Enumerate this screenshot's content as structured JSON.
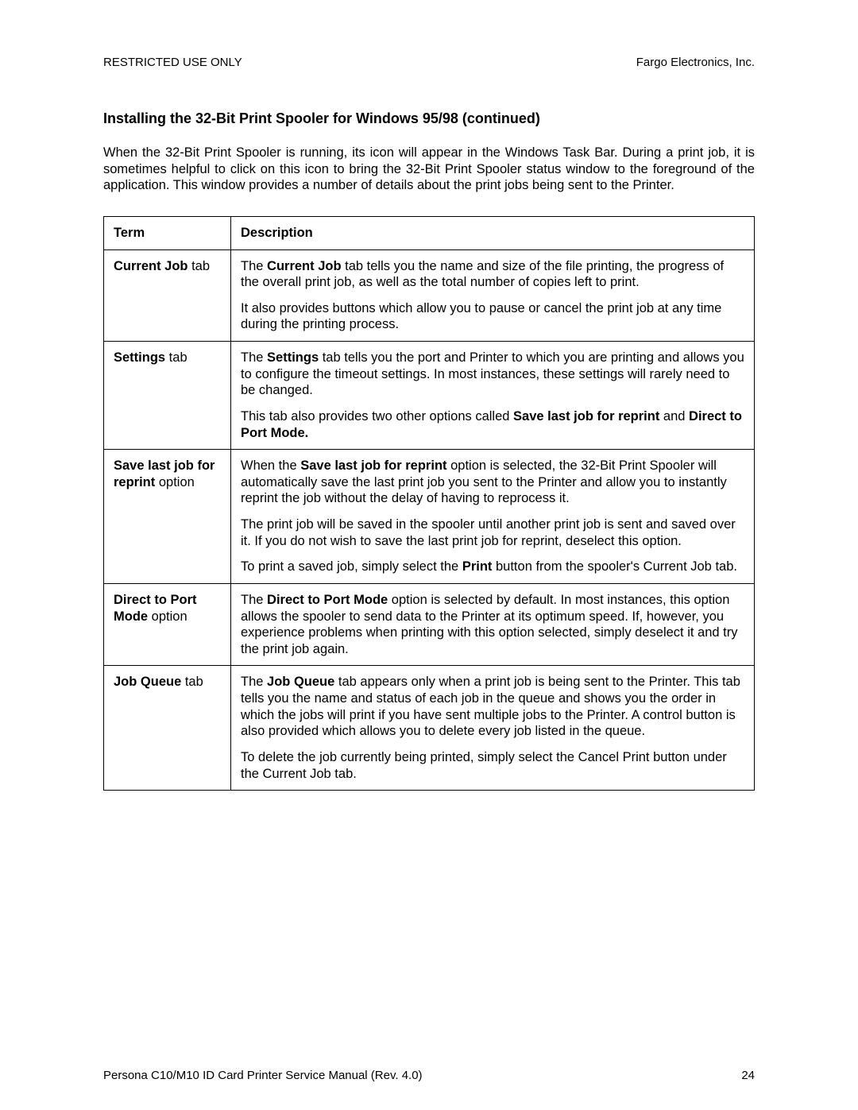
{
  "header": {
    "left": "RESTRICTED USE ONLY",
    "right": "Fargo Electronics, Inc."
  },
  "heading": "Installing the 32-Bit Print Spooler for Windows 95/98 (continued)",
  "intro": "When the 32-Bit Print Spooler is running, its icon will appear in the Windows Task Bar. During a print job, it is sometimes helpful to click on this icon to bring the 32-Bit Print Spooler status window to the foreground of the application. This window provides a number of details about the print jobs being sent to the Printer.",
  "table": {
    "headers": {
      "term": "Term",
      "desc": "Description"
    },
    "rows": [
      {
        "term_bold": "Current Job",
        "term_plain": " tab",
        "desc": [
          {
            "parts": [
              {
                "t": "The ",
                "b": false
              },
              {
                "t": "Current Job",
                "b": true
              },
              {
                "t": " tab tells you the name and size of the file printing, the progress of the overall print job, as well as the total number of copies left to print.",
                "b": false
              }
            ]
          },
          {
            "parts": [
              {
                "t": "It also provides buttons which allow you to pause or cancel the print job at any time during the printing process.",
                "b": false
              }
            ]
          }
        ]
      },
      {
        "term_bold": "Settings",
        "term_plain": " tab",
        "desc": [
          {
            "parts": [
              {
                "t": "The ",
                "b": false
              },
              {
                "t": "Settings",
                "b": true
              },
              {
                "t": " tab tells you the port and Printer to which you are printing and allows you to configure the timeout settings. In most instances, these settings will rarely need to be changed.",
                "b": false
              }
            ]
          },
          {
            "parts": [
              {
                "t": "This tab also provides two other options called ",
                "b": false
              },
              {
                "t": "Save last job for reprint",
                "b": true
              },
              {
                "t": " and ",
                "b": false
              },
              {
                "t": "Direct to Port Mode.",
                "b": true
              }
            ]
          }
        ]
      },
      {
        "term_bold": "Save last job for reprint",
        "term_plain": " option",
        "desc": [
          {
            "parts": [
              {
                "t": "When the ",
                "b": false
              },
              {
                "t": "Save last job for reprint",
                "b": true
              },
              {
                "t": " option is selected, the 32-Bit Print Spooler will automatically save the last print job you sent to the Printer and allow you to instantly reprint the job without the delay of having to reprocess it.",
                "b": false
              }
            ]
          },
          {
            "parts": [
              {
                "t": "The print job will be saved in the spooler until another print job is sent and saved over it. If you do not wish to save the last print job for reprint, deselect this option.",
                "b": false
              }
            ]
          },
          {
            "parts": [
              {
                "t": "To print a saved job, simply select the ",
                "b": false
              },
              {
                "t": "Print",
                "b": true
              },
              {
                "t": " button from the spooler's Current Job tab.",
                "b": false
              }
            ]
          }
        ]
      },
      {
        "term_bold": "Direct to Port Mode",
        "term_plain": " option",
        "desc": [
          {
            "parts": [
              {
                "t": "The ",
                "b": false
              },
              {
                "t": "Direct to Port Mode",
                "b": true
              },
              {
                "t": " option is selected by default. In most instances, this option allows the spooler to send data to the Printer at its optimum speed. If, however, you experience problems when printing with this option selected, simply deselect it and try the print job again.",
                "b": false
              }
            ]
          }
        ]
      },
      {
        "term_bold": "Job Queue",
        "term_plain": " tab",
        "desc": [
          {
            "parts": [
              {
                "t": "The ",
                "b": false
              },
              {
                "t": "Job Queue",
                "b": true
              },
              {
                "t": " tab appears only when a print job is being sent to the Printer. This tab tells you the name and status of each job in the queue and shows you the order in which the jobs will print if you have sent multiple jobs to the Printer. A control button is also provided which allows you to delete every job listed in the queue.",
                "b": false
              }
            ]
          },
          {
            "parts": [
              {
                "t": "To delete the job currently being printed, simply select the Cancel Print button under the Current Job tab.",
                "b": false
              }
            ]
          }
        ]
      }
    ]
  },
  "footer": {
    "left": "Persona C10/M10 ID Card Printer Service Manual (Rev. 4.0)",
    "page": "24"
  }
}
